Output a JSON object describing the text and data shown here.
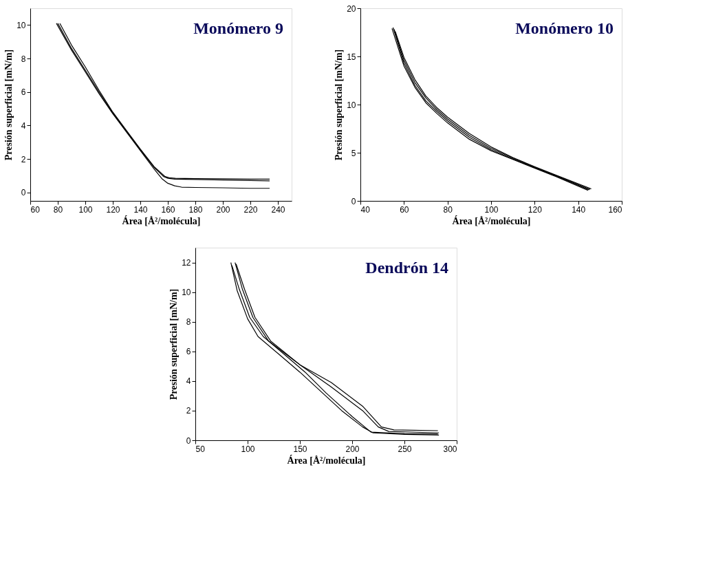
{
  "chart_data": [
    {
      "type": "line",
      "title": "Monómero 9",
      "xlabel": "Área [Å²/molécula]",
      "ylabel": "Presión superficial [mN/m]",
      "xlim": [
        60,
        250
      ],
      "xticks": [
        60,
        80,
        100,
        120,
        140,
        160,
        180,
        200,
        220,
        240
      ],
      "ylim": [
        -0.5,
        11
      ],
      "yticks": [
        0,
        2,
        4,
        6,
        8,
        10
      ],
      "grid": false,
      "series": [
        {
          "color": "#000000",
          "x": [
            79,
            90,
            100,
            110,
            120,
            130,
            140,
            150,
            156,
            160,
            165,
            170,
            180,
            200,
            220,
            234
          ],
          "values": [
            10.1,
            8.5,
            7.2,
            5.9,
            4.7,
            3.6,
            2.5,
            1.4,
            0.8,
            0.55,
            0.4,
            0.32,
            0.3,
            0.28,
            0.25,
            0.25
          ]
        },
        {
          "color": "#000000",
          "x": [
            80,
            90,
            100,
            110,
            120,
            130,
            140,
            150,
            157,
            160,
            165,
            180,
            200,
            220,
            234
          ],
          "values": [
            10.1,
            8.6,
            7.3,
            6.0,
            4.75,
            3.65,
            2.55,
            1.5,
            0.95,
            0.85,
            0.8,
            0.78,
            0.75,
            0.72,
            0.7
          ]
        },
        {
          "color": "#000000",
          "x": [
            81.5,
            90,
            100,
            110,
            120,
            130,
            140,
            150,
            158,
            161,
            165,
            180,
            200,
            220,
            234
          ],
          "values": [
            10.1,
            8.8,
            7.5,
            6.1,
            4.8,
            3.7,
            2.6,
            1.55,
            0.95,
            0.88,
            0.85,
            0.83,
            0.82,
            0.8,
            0.8
          ]
        }
      ]
    },
    {
      "type": "line",
      "title": "Monómero 10",
      "xlabel": "Área [Å²/molécula]",
      "ylabel": "Presión superficial [mN/m]",
      "xlim": [
        40,
        160
      ],
      "xticks": [
        40,
        60,
        80,
        100,
        120,
        140,
        160
      ],
      "ylim": [
        0,
        20
      ],
      "yticks": [
        0,
        5,
        10,
        15,
        20
      ],
      "grid": false,
      "series": [
        {
          "color": "#000000",
          "x": [
            54.5,
            60,
            65,
            70,
            75,
            80,
            90,
            100,
            110,
            120,
            130,
            144.5
          ],
          "values": [
            17.9,
            14.0,
            11.8,
            10.2,
            9.1,
            8.1,
            6.4,
            5.2,
            4.3,
            3.4,
            2.5,
            1.1
          ]
        },
        {
          "color": "#000000",
          "x": [
            55,
            60,
            65,
            70,
            75,
            80,
            90,
            100,
            110,
            120,
            130,
            145
          ],
          "values": [
            18,
            14.3,
            12.0,
            10.4,
            9.3,
            8.3,
            6.6,
            5.3,
            4.35,
            3.45,
            2.55,
            1.15
          ]
        },
        {
          "color": "#000000",
          "x": [
            55.5,
            60,
            65,
            70,
            75,
            80,
            90,
            100,
            110,
            120,
            130,
            145.5
          ],
          "values": [
            17.8,
            14.6,
            12.3,
            10.7,
            9.5,
            8.5,
            6.8,
            5.45,
            4.45,
            3.5,
            2.6,
            1.2
          ]
        },
        {
          "color": "#000000",
          "x": [
            56,
            60,
            65,
            70,
            75,
            80,
            90,
            100,
            110,
            120,
            130,
            146
          ],
          "values": [
            17.6,
            14.9,
            12.6,
            10.9,
            9.7,
            8.7,
            7.0,
            5.6,
            4.5,
            3.55,
            2.65,
            1.25
          ]
        }
      ]
    },
    {
      "type": "line",
      "title": "Dendrón 14",
      "xlabel": "Área [Å²/molécula]",
      "ylabel": "Presión superficial [mN/m]",
      "xlim": [
        50,
        300
      ],
      "xticks": [
        50,
        100,
        150,
        200,
        250,
        300
      ],
      "ylim": [
        0,
        13
      ],
      "yticks": [
        0,
        2,
        4,
        6,
        8,
        10,
        12
      ],
      "grid": false,
      "series": [
        {
          "color": "#000000",
          "x": [
            84,
            90,
            100,
            110,
            130,
            150,
            170,
            190,
            210,
            220,
            250,
            283
          ],
          "values": [
            12,
            10.1,
            8.2,
            7.0,
            5.8,
            4.6,
            3.3,
            2.0,
            0.9,
            0.5,
            0.4,
            0.35
          ]
        },
        {
          "color": "#000000",
          "x": [
            85,
            92,
            102,
            115,
            135,
            155,
            175,
            200,
            218,
            250,
            282
          ],
          "values": [
            11.8,
            10.2,
            8.3,
            7.0,
            5.8,
            4.6,
            3.2,
            1.6,
            0.55,
            0.45,
            0.42
          ]
        },
        {
          "color": "#000000",
          "x": [
            88,
            95,
            105,
            120,
            150,
            180,
            210,
            225,
            235,
            283
          ],
          "values": [
            12,
            10.2,
            8.3,
            6.7,
            5.1,
            3.6,
            2.0,
            0.9,
            0.6,
            0.5
          ]
        },
        {
          "color": "#000000",
          "x": [
            89,
            97,
            107,
            122,
            150,
            180,
            210,
            228,
            240,
            282
          ],
          "values": [
            11.9,
            10.2,
            8.3,
            6.7,
            5.1,
            3.9,
            2.3,
            0.9,
            0.7,
            0.65
          ]
        }
      ]
    }
  ]
}
